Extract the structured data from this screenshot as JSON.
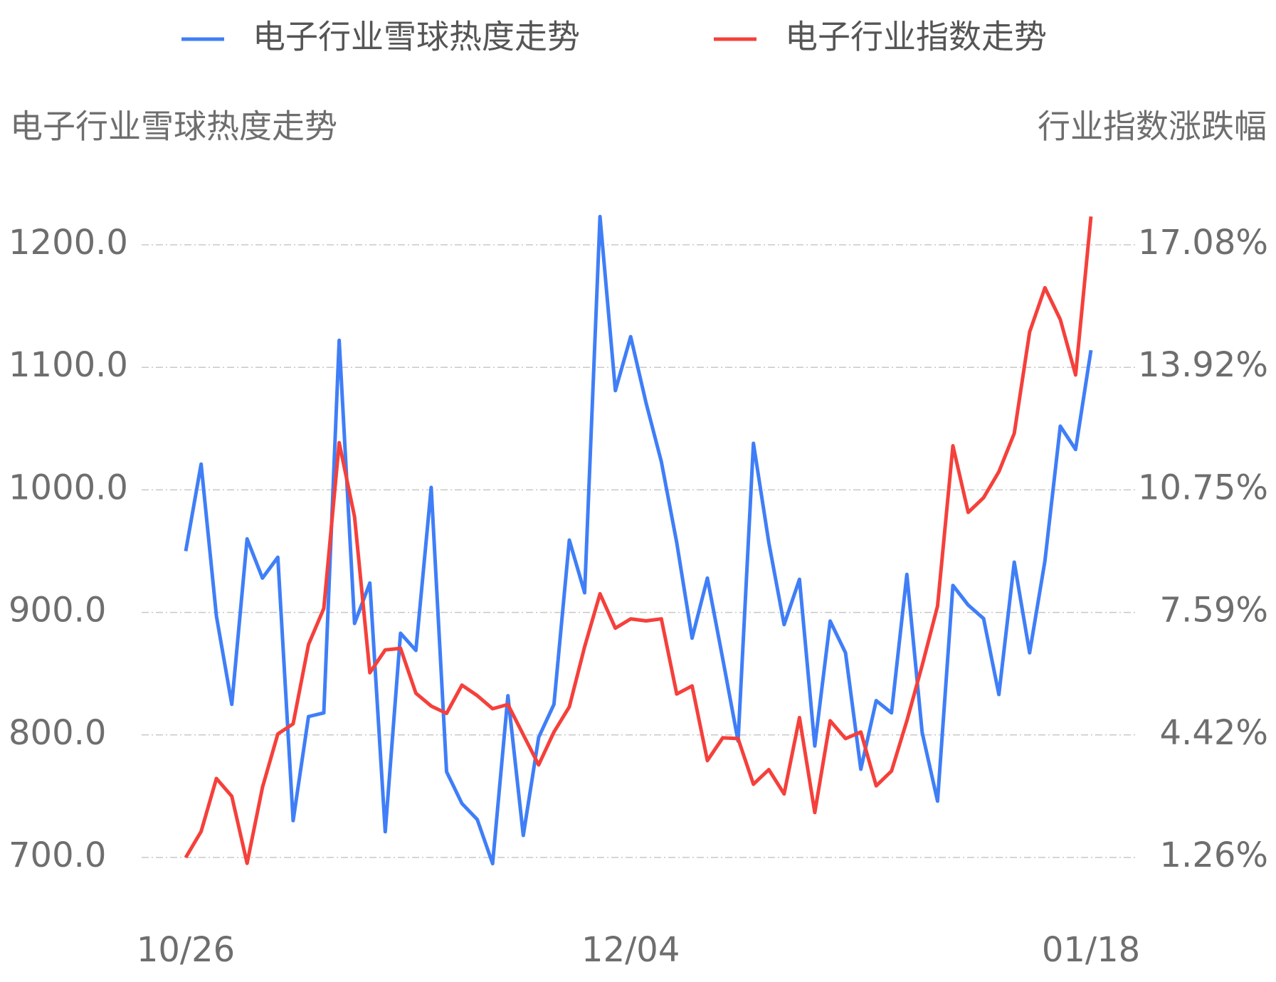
{
  "chart_data": {
    "type": "line",
    "y_title": "电子行业雪球热度走势",
    "y2_title": "行业指数涨跌幅",
    "categories": [
      "10/26",
      null,
      null,
      null,
      null,
      null,
      null,
      null,
      null,
      null,
      null,
      null,
      null,
      null,
      null,
      null,
      null,
      null,
      null,
      null,
      null,
      null,
      null,
      null,
      null,
      null,
      null,
      null,
      null,
      "12/04",
      null,
      null,
      null,
      null,
      null,
      null,
      null,
      null,
      null,
      null,
      null,
      null,
      null,
      null,
      null,
      null,
      null,
      null,
      null,
      null,
      null,
      null,
      null,
      null,
      null,
      null,
      null,
      null,
      null,
      "01/18"
    ],
    "series": [
      {
        "name": "电子行业雪球热度走势",
        "color": "#3f7ef7",
        "axis": "y",
        "values": [
          950,
          1021,
          897,
          825,
          960,
          928,
          945,
          730,
          815,
          818,
          1122,
          891,
          924,
          721,
          883,
          869,
          1002,
          770,
          744,
          731,
          695,
          832,
          718,
          798,
          825,
          959,
          916,
          1223,
          1081,
          1125,
          1071,
          1023,
          957,
          879,
          928,
          862,
          795,
          1038,
          957,
          890,
          927,
          791,
          893,
          867,
          772,
          828,
          818,
          931,
          802,
          746,
          922,
          906,
          895,
          833,
          941,
          867,
          942,
          1052,
          1033,
          1114
        ]
      },
      {
        "name": "电子行业指数走势",
        "color": "#f5403b",
        "axis": "y2",
        "values": [
          1.26,
          1.93,
          3.3,
          2.84,
          1.11,
          3.07,
          4.45,
          4.71,
          6.76,
          7.69,
          11.97,
          10.06,
          6.03,
          6.62,
          6.66,
          5.5,
          5.17,
          4.98,
          5.71,
          5.44,
          5.1,
          5.21,
          4.43,
          3.65,
          4.5,
          5.15,
          6.7,
          8.07,
          7.18,
          7.42,
          7.37,
          7.42,
          5.48,
          5.69,
          3.76,
          4.35,
          4.33,
          3.15,
          3.53,
          2.9,
          4.87,
          2.42,
          4.79,
          4.33,
          4.5,
          3.11,
          3.49,
          4.79,
          6.22,
          7.75,
          11.89,
          10.17,
          10.55,
          11.22,
          12.21,
          14.83,
          15.97,
          15.15,
          13.72,
          17.81
        ]
      }
    ],
    "ylim": [
      700,
      1200
    ],
    "yticks": [
      {
        "value": 700,
        "label": "700.0"
      },
      {
        "value": 800,
        "label": "800.0"
      },
      {
        "value": 900,
        "label": "900.0"
      },
      {
        "value": 1000,
        "label": "1000.0"
      },
      {
        "value": 1100,
        "label": "1100.0"
      },
      {
        "value": 1200,
        "label": "1200.0"
      }
    ],
    "y2lim": [
      1.26,
      17.08
    ],
    "y2ticks": [
      {
        "value": 1.26,
        "label": "1.26%"
      },
      {
        "value": 4.42,
        "label": "4.42%"
      },
      {
        "value": 7.59,
        "label": "7.59%"
      },
      {
        "value": 10.75,
        "label": "10.75%"
      },
      {
        "value": 13.92,
        "label": "13.92%"
      },
      {
        "value": 17.08,
        "label": "17.08%"
      }
    ],
    "grid": true,
    "legend": "top"
  }
}
